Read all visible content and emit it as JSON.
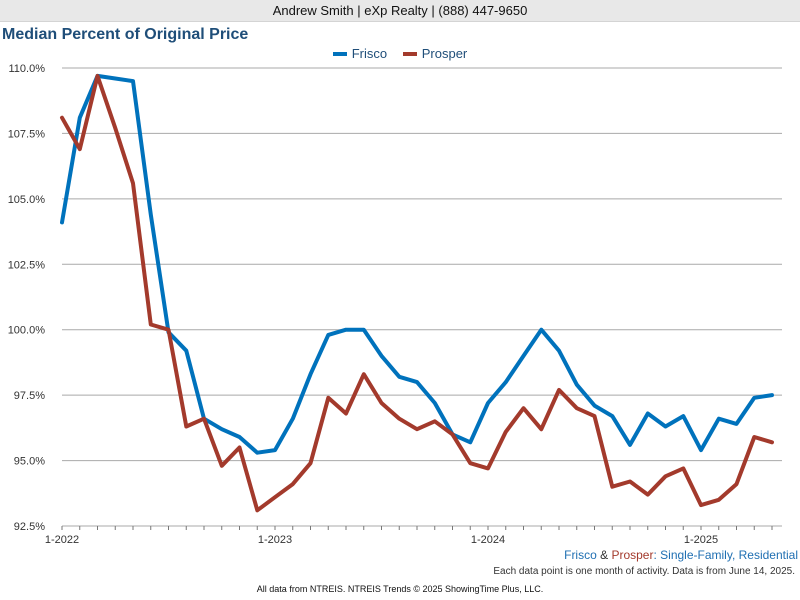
{
  "header": {
    "contact": "Andrew Smith | eXp Realty | (888) 447-9650"
  },
  "chart_data": {
    "type": "line",
    "title": "Median Percent of Original Price",
    "x_ticks": [
      "1-2022",
      "1-2023",
      "1-2024",
      "1-2025"
    ],
    "y_ticks": [
      "92.5%",
      "95.0%",
      "97.5%",
      "100.0%",
      "102.5%",
      "105.0%",
      "107.5%",
      "110.0%"
    ],
    "ylim": [
      92.5,
      110.0
    ],
    "grid": true,
    "legend_position": "top",
    "x": [
      "2022-01",
      "2022-02",
      "2022-03",
      "2022-04",
      "2022-05",
      "2022-06",
      "2022-07",
      "2022-08",
      "2022-09",
      "2022-10",
      "2022-11",
      "2022-12",
      "2023-01",
      "2023-02",
      "2023-03",
      "2023-04",
      "2023-05",
      "2023-06",
      "2023-07",
      "2023-08",
      "2023-09",
      "2023-10",
      "2023-11",
      "2023-12",
      "2024-01",
      "2024-02",
      "2024-03",
      "2024-04",
      "2024-05",
      "2024-06",
      "2024-07",
      "2024-08",
      "2024-09",
      "2024-10",
      "2024-11",
      "2024-12",
      "2025-01",
      "2025-02",
      "2025-03",
      "2025-04",
      "2025-05"
    ],
    "series": [
      {
        "name": "Frisco",
        "color": "#0072bc",
        "values": [
          104.1,
          108.1,
          109.7,
          109.6,
          109.5,
          104.4,
          99.9,
          99.2,
          96.6,
          96.2,
          95.9,
          95.3,
          95.4,
          96.6,
          98.3,
          99.8,
          100.0,
          100.0,
          99.0,
          98.2,
          98.0,
          97.2,
          96.0,
          95.7,
          97.2,
          98.0,
          99.0,
          100.0,
          99.2,
          97.9,
          97.1,
          96.7,
          95.6,
          96.8,
          96.3,
          96.7,
          95.4,
          96.6,
          96.4,
          97.4,
          97.5
        ]
      },
      {
        "name": "Prosper",
        "color": "#a33a2c",
        "values": [
          108.1,
          106.9,
          109.7,
          107.7,
          105.6,
          100.2,
          100.0,
          96.3,
          96.6,
          94.8,
          95.5,
          93.1,
          93.6,
          94.1,
          94.9,
          97.4,
          96.8,
          98.3,
          97.2,
          96.6,
          96.2,
          96.5,
          96.0,
          94.9,
          94.7,
          96.1,
          97.0,
          96.2,
          97.7,
          97.0,
          96.7,
          94.0,
          94.2,
          93.7,
          94.4,
          94.7,
          93.3,
          93.5,
          94.1,
          95.9,
          95.7
        ]
      }
    ]
  },
  "subtitle": {
    "part1": "Frisco",
    "sep1": " & ",
    "part2": "Prosper",
    "sep2": ": ",
    "part3": "Single-Family, Residential"
  },
  "note": "Each data point is one month of activity. Data is from June 14, 2025.",
  "footer": "All data from NTREIS. NTREIS Trends © 2025 ShowingTime Plus, LLC."
}
